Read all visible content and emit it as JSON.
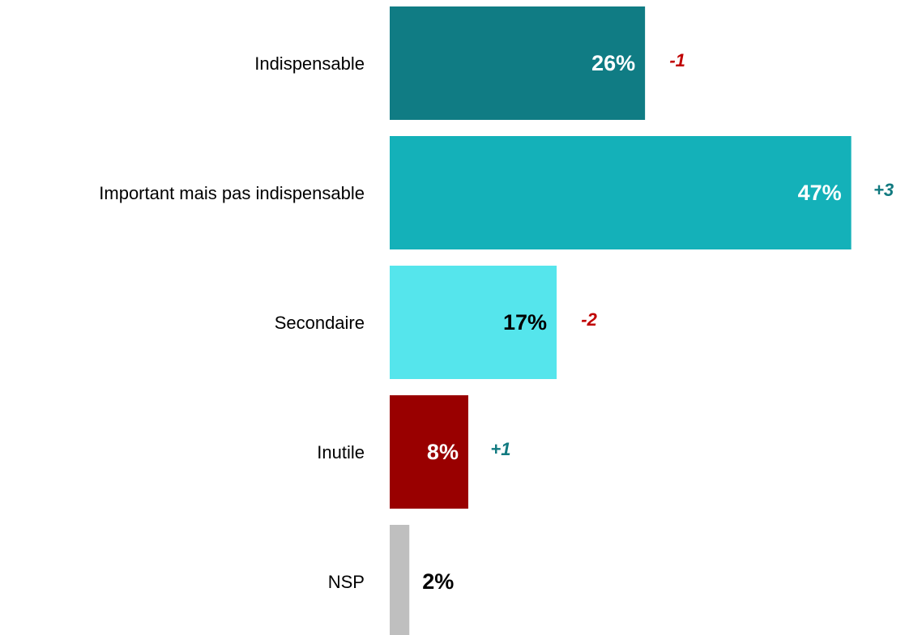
{
  "chart_data": {
    "type": "bar",
    "orientation": "horizontal",
    "categories": [
      "Indispensable",
      "Important mais pas indispensable",
      "Secondaire",
      "Inutile",
      "NSP"
    ],
    "values": [
      26,
      47,
      17,
      8,
      2
    ],
    "value_labels": [
      "26%",
      "47%",
      "17%",
      "8%",
      "2%"
    ],
    "colors": [
      "#107c84",
      "#14b1b9",
      "#55e5ec",
      "#990000",
      "#bfbfbf"
    ],
    "label_colors": [
      "#ffffff",
      "#ffffff",
      "#000000",
      "#ffffff",
      "#000000"
    ],
    "changes": [
      -1,
      3,
      -2,
      1,
      null
    ],
    "change_labels": [
      "-1",
      "+3",
      "-2",
      "+1",
      null
    ],
    "change_colors": [
      "#c00000",
      "#117a80",
      "#c00000",
      "#117a80",
      null
    ]
  }
}
